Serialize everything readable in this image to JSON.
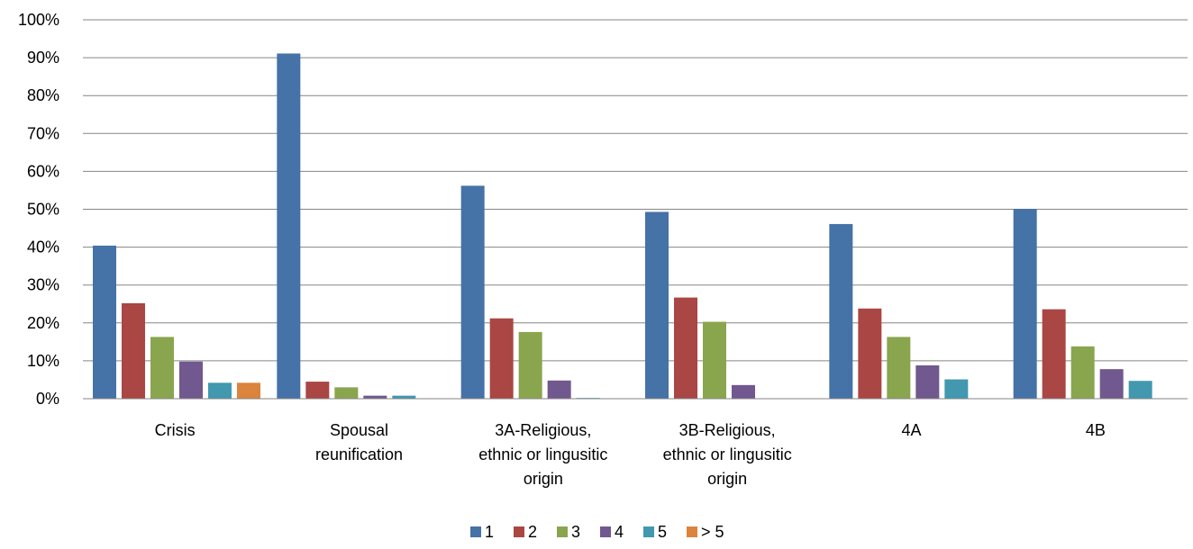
{
  "chart_data": {
    "type": "bar",
    "title": "",
    "xlabel": "",
    "ylabel": "",
    "ylim": [
      0,
      100
    ],
    "y_ticks": [
      "0%",
      "10%",
      "20%",
      "30%",
      "40%",
      "50%",
      "60%",
      "70%",
      "80%",
      "90%",
      "100%"
    ],
    "grid": true,
    "legend_position": "bottom",
    "categories": [
      [
        "Crisis"
      ],
      [
        "Spousal",
        "reunification"
      ],
      [
        "3A-Religious,",
        "ethnic or lingusitic",
        "origin"
      ],
      [
        "3B-Religious,",
        "ethnic or lingusitic",
        "origin"
      ],
      [
        "4A"
      ],
      [
        "4B"
      ]
    ],
    "series": [
      {
        "name": "1",
        "color": "#4572A7",
        "values": [
          40.4,
          91.1,
          56.2,
          49.3,
          46.1,
          50.1
        ]
      },
      {
        "name": "2",
        "color": "#AA4643",
        "values": [
          25.2,
          4.5,
          21.2,
          26.7,
          23.8,
          23.6
        ]
      },
      {
        "name": "3",
        "color": "#89A54E",
        "values": [
          16.3,
          3.0,
          17.6,
          20.3,
          16.3,
          13.8
        ]
      },
      {
        "name": "4",
        "color": "#71588F",
        "values": [
          9.8,
          0.8,
          4.8,
          3.6,
          8.8,
          7.8
        ]
      },
      {
        "name": "5",
        "color": "#4198AF",
        "values": [
          4.2,
          0.8,
          0.2,
          0.0,
          5.1,
          4.7
        ]
      },
      {
        "name": "> 5",
        "color": "#DB843D",
        "values": [
          4.2,
          0.0,
          0.0,
          0.0,
          0.0,
          0.0
        ]
      }
    ]
  }
}
